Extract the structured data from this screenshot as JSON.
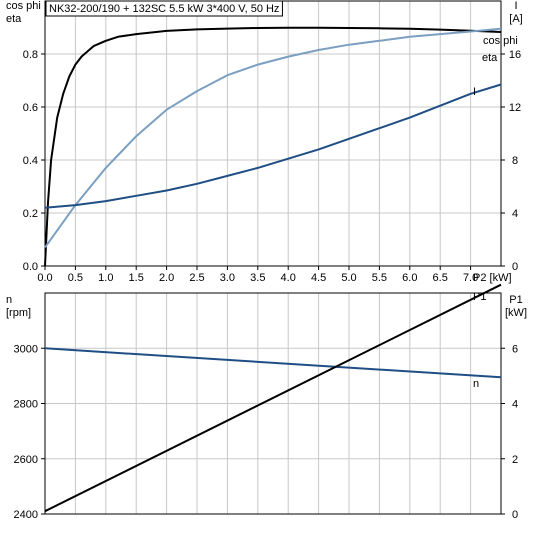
{
  "header": {
    "title": "NK32-200/190 + 132SC   5.5 kW   3*400 V, 50 Hz"
  },
  "chart_data": [
    {
      "type": "line",
      "x_label": "P2 [kW]",
      "x_ticks": [
        "0.0",
        "0.5",
        "1.0",
        "1.5",
        "2.0",
        "2.5",
        "3.0",
        "3.5",
        "4.0",
        "4.5",
        "5.0",
        "5.5",
        "6.0",
        "6.5",
        "7.0"
      ],
      "xlim": [
        0,
        7.5
      ],
      "left_axis": {
        "label_lines": [
          "cos phi",
          "eta"
        ],
        "ylim": [
          0,
          1.0
        ],
        "ticks": [
          "0.0",
          "0.2",
          "0.4",
          "0.6",
          "0.8"
        ]
      },
      "right_axis": {
        "label_lines": [
          "I",
          "[A]"
        ],
        "ylim": [
          0,
          20
        ],
        "ticks": [
          "0",
          "4",
          "8",
          "12",
          "16"
        ]
      },
      "grid": true,
      "series": [
        {
          "name": "eta",
          "axis": "left",
          "color": "#000000",
          "x": [
            0,
            0.05,
            0.1,
            0.2,
            0.3,
            0.4,
            0.5,
            0.6,
            0.8,
            1.0,
            1.2,
            1.5,
            2.0,
            2.5,
            3.0,
            3.5,
            4.0,
            4.5,
            5.0,
            5.5,
            6.0,
            6.5,
            7.0,
            7.5
          ],
          "y": [
            0,
            0.24,
            0.4,
            0.56,
            0.65,
            0.715,
            0.76,
            0.79,
            0.83,
            0.85,
            0.865,
            0.875,
            0.887,
            0.893,
            0.896,
            0.898,
            0.899,
            0.899,
            0.898,
            0.897,
            0.895,
            0.892,
            0.888,
            0.883
          ]
        },
        {
          "name": "cos phi",
          "axis": "left",
          "color": "#7a9fc0",
          "x": [
            0,
            0.5,
            1.0,
            1.5,
            2.0,
            2.5,
            3.0,
            3.5,
            4.0,
            4.5,
            5.0,
            5.5,
            6.0,
            6.5,
            7.0,
            7.5
          ],
          "y": [
            0.07,
            0.23,
            0.37,
            0.49,
            0.59,
            0.66,
            0.72,
            0.76,
            0.79,
            0.815,
            0.835,
            0.85,
            0.865,
            0.875,
            0.885,
            0.895
          ]
        },
        {
          "name": "I",
          "axis": "right",
          "color": "#1f4e85",
          "x": [
            0,
            0.5,
            1.0,
            1.5,
            2.0,
            2.5,
            3.0,
            3.5,
            4.0,
            4.5,
            5.0,
            5.5,
            6.0,
            6.5,
            7.0,
            7.5
          ],
          "y": [
            4.4,
            4.6,
            4.9,
            5.3,
            5.7,
            6.2,
            6.8,
            7.4,
            8.1,
            8.8,
            9.6,
            10.4,
            11.2,
            12.1,
            13.0,
            13.7
          ]
        }
      ]
    },
    {
      "type": "line",
      "xlim": [
        0,
        7.5
      ],
      "left_axis": {
        "label_lines": [
          "n",
          "[rpm]"
        ],
        "ylim": [
          2400,
          3200
        ],
        "ticks": [
          "2400",
          "2600",
          "2800",
          "3000"
        ]
      },
      "right_axis": {
        "label_lines": [
          "P1",
          "[kW]"
        ],
        "ylim": [
          0,
          8
        ],
        "ticks": [
          "0",
          "2",
          "4",
          "6"
        ]
      },
      "grid": true,
      "series": [
        {
          "name": "n",
          "axis": "left",
          "color": "#1f4e85",
          "x": [
            0,
            7.5
          ],
          "y": [
            3000,
            2895
          ]
        },
        {
          "name": "P1",
          "axis": "right",
          "color": "#000000",
          "x": [
            0,
            7.5
          ],
          "y": [
            0.1,
            8.3
          ]
        }
      ]
    }
  ]
}
